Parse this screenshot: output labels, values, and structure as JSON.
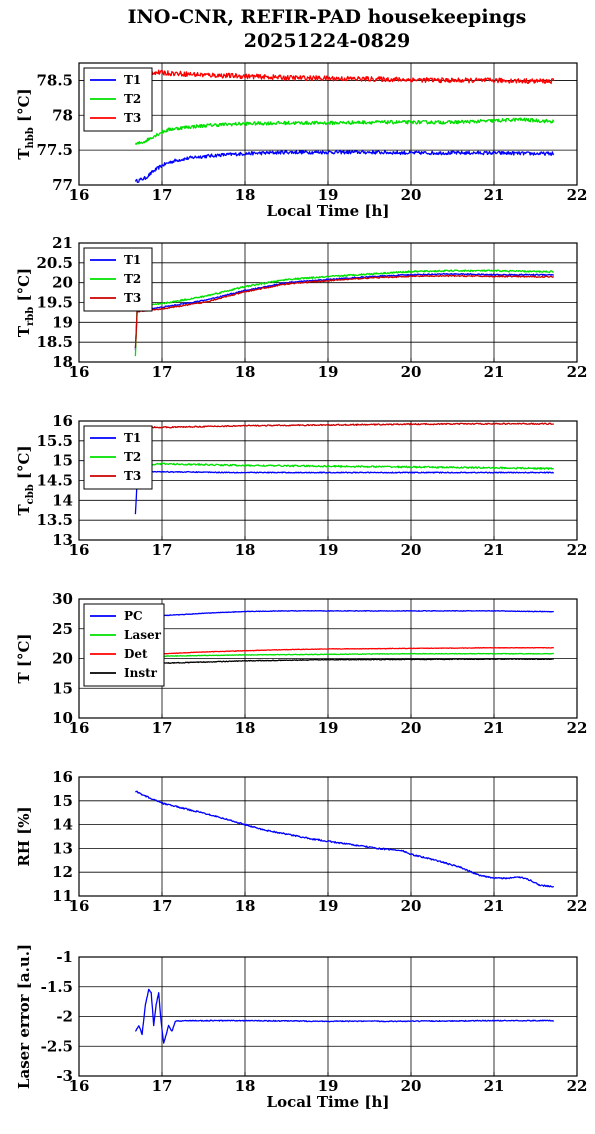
{
  "figure": {
    "title_line1": "INO-CNR, REFIR-PAD housekeepings",
    "title_line2": "20251224-0829"
  },
  "chart_data": [
    {
      "type": "line",
      "id": "hbb",
      "ylabel_main": "T",
      "ylabel_sub": "hbb",
      "ylabel_unit": "[°C]",
      "xlabel": "Local Time [h]",
      "xlim": [
        16,
        22
      ],
      "ylim": [
        77,
        78.75
      ],
      "xticks": [
        16,
        17,
        18,
        19,
        20,
        21,
        22
      ],
      "yticks": [
        77,
        77.5,
        78,
        78.5
      ],
      "grid": true,
      "legend_position": "top-left",
      "series": [
        {
          "name": "T1",
          "color": "#0000ff",
          "noise": 0.025,
          "points": [
            [
              16.68,
              77.05
            ],
            [
              16.8,
              77.1
            ],
            [
              16.9,
              77.2
            ],
            [
              17.0,
              77.28
            ],
            [
              17.1,
              77.33
            ],
            [
              17.2,
              77.36
            ],
            [
              17.4,
              77.4
            ],
            [
              17.7,
              77.43
            ],
            [
              18.0,
              77.45
            ],
            [
              18.5,
              77.47
            ],
            [
              19.0,
              77.47
            ],
            [
              19.5,
              77.47
            ],
            [
              20.0,
              77.46
            ],
            [
              20.5,
              77.46
            ],
            [
              21.0,
              77.46
            ],
            [
              21.5,
              77.45
            ],
            [
              21.72,
              77.45
            ]
          ]
        },
        {
          "name": "T2",
          "color": "#00e000",
          "noise": 0.025,
          "points": [
            [
              16.68,
              77.58
            ],
            [
              16.8,
              77.63
            ],
            [
              16.9,
              77.7
            ],
            [
              17.0,
              77.76
            ],
            [
              17.1,
              77.8
            ],
            [
              17.3,
              77.83
            ],
            [
              17.6,
              77.86
            ],
            [
              18.0,
              77.88
            ],
            [
              18.5,
              77.89
            ],
            [
              19.0,
              77.89
            ],
            [
              19.5,
              77.9
            ],
            [
              20.0,
              77.9
            ],
            [
              20.5,
              77.9
            ],
            [
              21.0,
              77.92
            ],
            [
              21.3,
              77.94
            ],
            [
              21.72,
              77.91
            ]
          ]
        },
        {
          "name": "T3",
          "color": "#ff0000",
          "noise": 0.035,
          "points": [
            [
              16.68,
              78.63
            ],
            [
              17.0,
              78.61
            ],
            [
              17.5,
              78.58
            ],
            [
              18.0,
              78.56
            ],
            [
              18.5,
              78.54
            ],
            [
              19.0,
              78.53
            ],
            [
              19.5,
              78.52
            ],
            [
              20.0,
              78.51
            ],
            [
              20.5,
              78.5
            ],
            [
              21.0,
              78.5
            ],
            [
              21.5,
              78.49
            ],
            [
              21.72,
              78.49
            ]
          ]
        }
      ]
    },
    {
      "type": "line",
      "id": "rbb",
      "ylabel_main": "T",
      "ylabel_sub": "rbb",
      "ylabel_unit": "[°C]",
      "xlabel": "",
      "xlim": [
        16,
        22
      ],
      "ylim": [
        18,
        21
      ],
      "xticks": [
        16,
        17,
        18,
        19,
        20,
        21,
        22
      ],
      "yticks": [
        18,
        18.5,
        19,
        19.5,
        20,
        20.5,
        21
      ],
      "grid": true,
      "legend_position": "top-left",
      "series": [
        {
          "name": "T1",
          "color": "#0000ff",
          "noise": 0.015,
          "points": [
            [
              16.68,
              18.3
            ],
            [
              16.7,
              19.3
            ],
            [
              17.0,
              19.38
            ],
            [
              17.5,
              19.55
            ],
            [
              18.0,
              19.8
            ],
            [
              18.5,
              20.0
            ],
            [
              19.0,
              20.08
            ],
            [
              19.5,
              20.15
            ],
            [
              20.0,
              20.2
            ],
            [
              20.5,
              20.22
            ],
            [
              21.0,
              20.2
            ],
            [
              21.5,
              20.2
            ],
            [
              21.72,
              20.2
            ]
          ]
        },
        {
          "name": "T2",
          "color": "#00e000",
          "noise": 0.02,
          "points": [
            [
              16.68,
              18.15
            ],
            [
              16.7,
              19.4
            ],
            [
              17.0,
              19.47
            ],
            [
              17.5,
              19.65
            ],
            [
              18.0,
              19.9
            ],
            [
              18.5,
              20.08
            ],
            [
              19.0,
              20.15
            ],
            [
              19.5,
              20.22
            ],
            [
              20.0,
              20.28
            ],
            [
              20.5,
              20.3
            ],
            [
              21.0,
              20.3
            ],
            [
              21.5,
              20.28
            ],
            [
              21.72,
              20.28
            ]
          ]
        },
        {
          "name": "T3",
          "color": "#cc0000",
          "noise": 0.015,
          "points": [
            [
              16.68,
              18.35
            ],
            [
              16.7,
              19.27
            ],
            [
              17.0,
              19.34
            ],
            [
              17.5,
              19.5
            ],
            [
              18.0,
              19.77
            ],
            [
              18.5,
              19.97
            ],
            [
              19.0,
              20.05
            ],
            [
              19.5,
              20.12
            ],
            [
              20.0,
              20.16
            ],
            [
              20.5,
              20.17
            ],
            [
              21.0,
              20.16
            ],
            [
              21.5,
              20.15
            ],
            [
              21.72,
              20.15
            ]
          ]
        }
      ]
    },
    {
      "type": "line",
      "id": "cbb",
      "ylabel_main": "T",
      "ylabel_sub": "cbb",
      "ylabel_unit": "[°C]",
      "xlabel": "",
      "xlim": [
        16,
        22
      ],
      "ylim": [
        13,
        16
      ],
      "xticks": [
        16,
        17,
        18,
        19,
        20,
        21,
        22
      ],
      "yticks": [
        13,
        13.5,
        14,
        14.5,
        15,
        15.5,
        16
      ],
      "grid": true,
      "legend_position": "top-left",
      "series": [
        {
          "name": "T1",
          "color": "#0000ff",
          "noise": 0.012,
          "points": [
            [
              16.68,
              13.65
            ],
            [
              16.7,
              14.5
            ],
            [
              16.72,
              14.72
            ],
            [
              17.0,
              14.72
            ],
            [
              18.0,
              14.7
            ],
            [
              19.0,
              14.7
            ],
            [
              20.0,
              14.7
            ],
            [
              21.0,
              14.7
            ],
            [
              21.72,
              14.7
            ]
          ]
        },
        {
          "name": "T2",
          "color": "#00e000",
          "noise": 0.02,
          "points": [
            [
              16.68,
              14.9
            ],
            [
              17.0,
              14.92
            ],
            [
              17.5,
              14.9
            ],
            [
              18.0,
              14.88
            ],
            [
              19.0,
              14.86
            ],
            [
              20.0,
              14.84
            ],
            [
              21.0,
              14.82
            ],
            [
              21.72,
              14.8
            ]
          ]
        },
        {
          "name": "T3",
          "color": "#cc0000",
          "noise": 0.015,
          "points": [
            [
              16.68,
              15.85
            ],
            [
              17.0,
              15.84
            ],
            [
              17.5,
              15.86
            ],
            [
              18.0,
              15.88
            ],
            [
              19.0,
              15.9
            ],
            [
              20.0,
              15.92
            ],
            [
              21.0,
              15.93
            ],
            [
              21.72,
              15.93
            ]
          ]
        }
      ]
    },
    {
      "type": "line",
      "id": "temps",
      "ylabel_main": "T [°C]",
      "ylabel_sub": "",
      "ylabel_unit": "",
      "xlabel": "",
      "xlim": [
        16,
        22
      ],
      "ylim": [
        10,
        30
      ],
      "xticks": [
        16,
        17,
        18,
        19,
        20,
        21,
        22
      ],
      "yticks": [
        10,
        15,
        20,
        25,
        30
      ],
      "grid": true,
      "legend_position": "top-left",
      "series": [
        {
          "name": "PC",
          "color": "#0000ff",
          "noise": 0.05,
          "points": [
            [
              16.68,
              26.9
            ],
            [
              17.0,
              27.2
            ],
            [
              17.5,
              27.6
            ],
            [
              18.0,
              27.9
            ],
            [
              18.5,
              28.0
            ],
            [
              19.0,
              28.0
            ],
            [
              19.5,
              28.0
            ],
            [
              20.0,
              28.0
            ],
            [
              20.5,
              28.0
            ],
            [
              21.0,
              28.0
            ],
            [
              21.5,
              27.9
            ],
            [
              21.72,
              27.9
            ]
          ]
        },
        {
          "name": "Laser",
          "color": "#00e000",
          "noise": 0.05,
          "points": [
            [
              16.68,
              20.3
            ],
            [
              17.0,
              20.4
            ],
            [
              17.5,
              20.5
            ],
            [
              18.0,
              20.6
            ],
            [
              19.0,
              20.7
            ],
            [
              20.0,
              20.8
            ],
            [
              21.0,
              20.8
            ],
            [
              21.72,
              20.8
            ]
          ]
        },
        {
          "name": "Det",
          "color": "#ff0000",
          "noise": 0.04,
          "points": [
            [
              16.68,
              20.5
            ],
            [
              17.0,
              20.8
            ],
            [
              17.5,
              21.1
            ],
            [
              18.0,
              21.3
            ],
            [
              18.5,
              21.5
            ],
            [
              19.0,
              21.6
            ],
            [
              20.0,
              21.7
            ],
            [
              21.0,
              21.8
            ],
            [
              21.72,
              21.8
            ]
          ]
        },
        {
          "name": "Instr",
          "color": "#000000",
          "noise": 0.06,
          "points": [
            [
              16.68,
              19.0
            ],
            [
              17.0,
              19.2
            ],
            [
              17.5,
              19.4
            ],
            [
              18.0,
              19.6
            ],
            [
              18.5,
              19.7
            ],
            [
              19.0,
              19.8
            ],
            [
              20.0,
              19.85
            ],
            [
              21.0,
              19.9
            ],
            [
              21.72,
              19.9
            ]
          ]
        }
      ]
    },
    {
      "type": "line",
      "id": "rh",
      "ylabel_main": "RH [%]",
      "ylabel_sub": "",
      "ylabel_unit": "",
      "xlabel": "",
      "xlim": [
        16,
        22
      ],
      "ylim": [
        11,
        16
      ],
      "xticks": [
        16,
        17,
        18,
        19,
        20,
        21,
        22
      ],
      "yticks": [
        11,
        12,
        13,
        14,
        15,
        16
      ],
      "grid": true,
      "legend_position": "none",
      "series": [
        {
          "name": "",
          "color": "#0000ff",
          "noise": 0.03,
          "points": [
            [
              16.68,
              15.4
            ],
            [
              16.8,
              15.2
            ],
            [
              17.0,
              14.9
            ],
            [
              17.3,
              14.65
            ],
            [
              17.6,
              14.4
            ],
            [
              17.9,
              14.1
            ],
            [
              18.2,
              13.8
            ],
            [
              18.5,
              13.6
            ],
            [
              18.8,
              13.4
            ],
            [
              19.0,
              13.3
            ],
            [
              19.3,
              13.15
            ],
            [
              19.6,
              13.0
            ],
            [
              19.9,
              12.9
            ],
            [
              20.0,
              12.75
            ],
            [
              20.3,
              12.5
            ],
            [
              20.6,
              12.2
            ],
            [
              20.8,
              11.9
            ],
            [
              21.0,
              11.75
            ],
            [
              21.2,
              11.75
            ],
            [
              21.3,
              11.8
            ],
            [
              21.45,
              11.65
            ],
            [
              21.55,
              11.45
            ],
            [
              21.72,
              11.4
            ]
          ]
        }
      ]
    },
    {
      "type": "line",
      "id": "laser",
      "ylabel_main": "Laser error [a.u.]",
      "ylabel_sub": "",
      "ylabel_unit": "",
      "xlabel": "Local Time [h]",
      "xlim": [
        16,
        22
      ],
      "ylim": [
        -3,
        -1
      ],
      "xticks": [
        16,
        17,
        18,
        19,
        20,
        21,
        22
      ],
      "yticks": [
        -3,
        -2.5,
        -2,
        -1.5,
        -1
      ],
      "grid": true,
      "legend_position": "none",
      "series": [
        {
          "name": "",
          "color": "#0000ff",
          "noise": 0.008,
          "points": [
            [
              16.68,
              -2.25
            ],
            [
              16.72,
              -2.15
            ],
            [
              16.76,
              -2.3
            ],
            [
              16.8,
              -1.8
            ],
            [
              16.84,
              -1.55
            ],
            [
              16.87,
              -1.6
            ],
            [
              16.9,
              -2.15
            ],
            [
              16.93,
              -1.8
            ],
            [
              16.96,
              -1.6
            ],
            [
              16.99,
              -2.1
            ],
            [
              17.02,
              -2.45
            ],
            [
              17.05,
              -2.3
            ],
            [
              17.08,
              -2.15
            ],
            [
              17.12,
              -2.25
            ],
            [
              17.16,
              -2.08
            ],
            [
              17.3,
              -2.07
            ],
            [
              18.0,
              -2.07
            ],
            [
              19.0,
              -2.08
            ],
            [
              20.0,
              -2.08
            ],
            [
              21.0,
              -2.07
            ],
            [
              21.72,
              -2.07
            ]
          ]
        }
      ]
    }
  ]
}
